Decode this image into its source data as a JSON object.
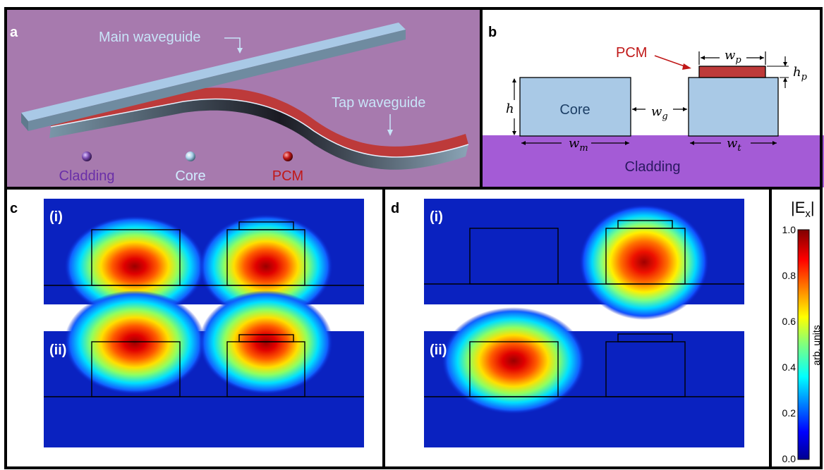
{
  "panel_a": {
    "letter": "a",
    "main_waveguide_label": "Main waveguide",
    "tap_waveguide_label": "Tap waveguide",
    "legend": [
      {
        "label": "Cladding",
        "color": "#7a4bb0"
      },
      {
        "label": "Core",
        "color": "#c8e0f0"
      },
      {
        "label": "PCM",
        "color": "#c01818"
      }
    ],
    "colors": {
      "background": "#a77aae",
      "core": "#a9c9e6",
      "pcm": "#bd3a3a"
    }
  },
  "panel_b": {
    "letter": "b",
    "pcm_label": "PCM",
    "core_label": "Core",
    "cladding_label": "Cladding",
    "dims": {
      "h": "h",
      "wm_base": "w",
      "wm_sub": "m",
      "wg_base": "w",
      "wg_sub": "g",
      "wt_base": "w",
      "wt_sub": "t",
      "wp_base": "w",
      "wp_sub": "p",
      "hp_base": "h",
      "hp_sub": "p"
    },
    "colors": {
      "core": "#a9c9e6",
      "pcm": "#bd3a3a",
      "cladding": "#a45bd6"
    }
  },
  "panel_c": {
    "letter": "c",
    "sub_i": "(i)",
    "sub_ii": "(ii)"
  },
  "panel_d": {
    "letter": "d",
    "sub_i": "(i)",
    "sub_ii": "(ii)"
  },
  "colorbar": {
    "title": "|E",
    "title_sub": "x",
    "title_end": "|",
    "unit": "arb. units",
    "ticks": [
      "1.0",
      "0.8",
      "0.6",
      "0.4",
      "0.2",
      "0.0"
    ]
  }
}
